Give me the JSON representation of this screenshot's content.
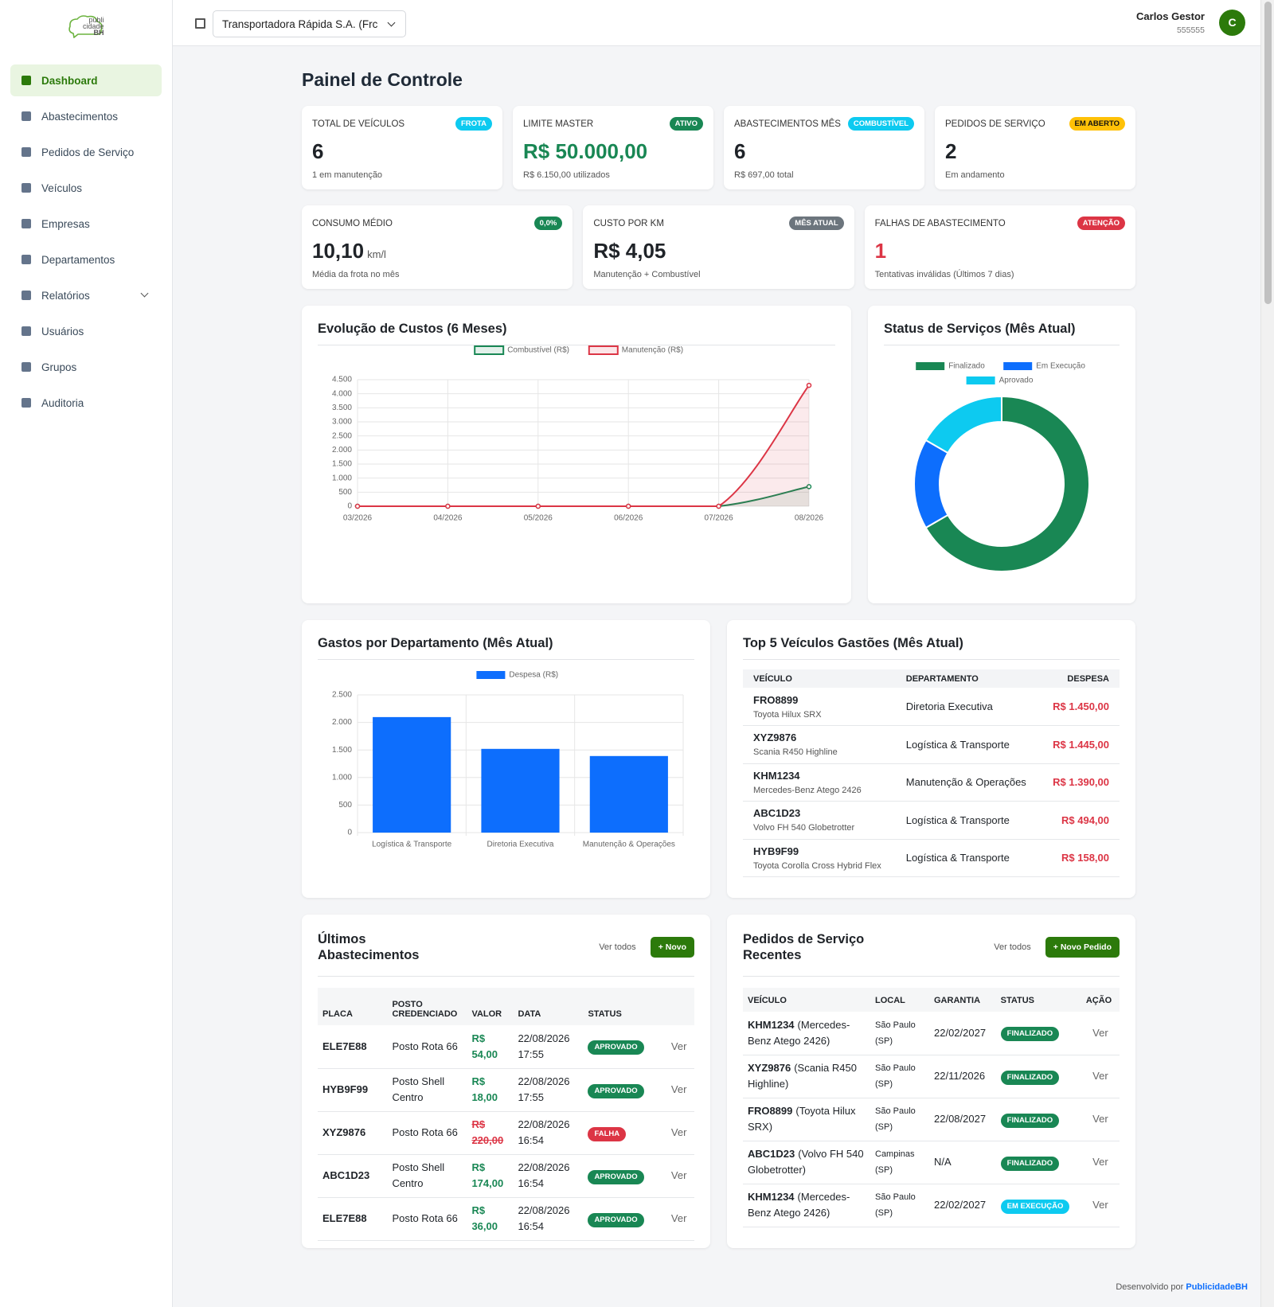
{
  "sidebar": {
    "logo": [
      "publi",
      "cidade",
      "BH"
    ],
    "menu": [
      "Dashboard",
      "Abastecimentos",
      "Pedidos de Serviço",
      "Veículos",
      "Empresas",
      "Departamentos",
      "Relatórios",
      "Usuários",
      "Grupos",
      "Auditoria"
    ],
    "active": 0,
    "expandable": 6
  },
  "header": {
    "company": "Transportadora Rápida S.A. (Frc",
    "user_name": "Carlos Gestor",
    "user_id": "555555",
    "avatar": "C"
  },
  "page_title": "Painel de Controle",
  "kpis": [
    {
      "label": "TOTAL DE VEÍCULOS",
      "badge": "FROTA",
      "badge_color": "#0dcaf0",
      "value": "6",
      "note": "1 em manutenção"
    },
    {
      "label": "LIMITE MASTER",
      "badge": "ATIVO",
      "badge_color": "#198754",
      "value": "R$ 50.000,00",
      "value_color": "#198754",
      "note": "R$ 6.150,00 utilizados"
    },
    {
      "label": "ABASTECIMENTOS MÊS",
      "badge": "COMBUSTÍVEL",
      "badge_color": "#0dcaf0",
      "value": "6",
      "note": "R$ 697,00 total"
    },
    {
      "label": "PEDIDOS DE SERVIÇO",
      "badge": "EM ABERTO",
      "badge_color": "#ffc107",
      "value": "2",
      "note": "Em andamento"
    },
    {
      "label": "CONSUMO MÉDIO",
      "badge": "0,0%",
      "badge_color": "#198754",
      "value": "10,10",
      "unit": "km/l",
      "note": "Média da frota no mês"
    },
    {
      "label": "CUSTO POR KM",
      "badge": "MÊS ATUAL",
      "badge_color": "#6c757d",
      "value": "R$ 4,05",
      "note": "Manutenção + Combustível"
    },
    {
      "label": "FALHAS DE ABASTECIMENTO",
      "badge": "ATENÇÃO",
      "badge_color": "#dc3545",
      "value": "1",
      "value_color": "#dc3545",
      "note": "Tentativas inválidas (Últimos 7 dias)"
    }
  ],
  "chart_data": [
    {
      "type": "line",
      "title": "Evolução de Custos (6 Meses)",
      "categories": [
        "03/2026",
        "04/2026",
        "05/2026",
        "06/2026",
        "07/2026",
        "08/2026"
      ],
      "series": [
        {
          "name": "Combustível (R$)",
          "color": "#198754",
          "values": [
            0,
            0,
            0,
            0,
            0,
            697
          ]
        },
        {
          "name": "Manutenção (R$)",
          "color": "#dc3545",
          "values": [
            0,
            0,
            0,
            0,
            0,
            4300
          ]
        }
      ],
      "ylim": [
        0,
        4500
      ],
      "yticks": [
        0,
        500,
        {
          "value": 1000,
          "label": "1.000"
        },
        {
          "value": 1500,
          "label": "1.500"
        },
        {
          "value": 2000,
          "label": "2.000"
        },
        {
          "value": 2500,
          "label": "2.500"
        },
        {
          "value": 3000,
          "label": "3.000"
        },
        {
          "value": 3500,
          "label": "3.500"
        },
        {
          "value": 4000,
          "label": "4.000"
        },
        {
          "value": 4500,
          "label": "4.500"
        }
      ],
      "grid": true,
      "legend": "top"
    },
    {
      "type": "doughnut",
      "title": "Status de Serviços (Mês Atual)",
      "categories": [
        "Finalizado",
        "Em Execução",
        "Aprovado"
      ],
      "values": [
        4,
        1,
        1
      ],
      "colors": [
        "#198754",
        "#0d6efd",
        "#0dcaf0"
      ],
      "legend": "top"
    },
    {
      "type": "bar",
      "title": "Gastos por Departamento (Mês Atual)",
      "categories": [
        "Logística & Transporte",
        "Diretoria Executiva",
        "Manutenção & Operações"
      ],
      "series": [
        {
          "name": "Despesa (R$)",
          "color": "#0d6efd",
          "values": [
            2097,
            1520,
            1390
          ]
        }
      ],
      "ylim": [
        0,
        2500
      ],
      "yticks": [
        0,
        500,
        {
          "value": 1000,
          "label": "1.000"
        },
        {
          "value": 1500,
          "label": "1.500"
        },
        {
          "value": 2000,
          "label": "2.000"
        },
        {
          "value": 2500,
          "label": "2.500"
        }
      ],
      "grid": true,
      "legend": "top"
    }
  ],
  "top_vehicles": {
    "title": "Top 5 Veículos Gastões (Mês Atual)",
    "columns": [
      "VEÍCULO",
      "DEPARTAMENTO",
      "DESPESA"
    ],
    "rows": [
      {
        "plate": "FRO8899",
        "model": "Toyota Hilux SRX",
        "department": "Diretoria Executiva",
        "expense": "R$ 1.450,00"
      },
      {
        "plate": "XYZ9876",
        "model": "Scania R450 Highline",
        "department": "Logística & Transporte",
        "expense": "R$ 1.445,00"
      },
      {
        "plate": "KHM1234",
        "model": "Mercedes-Benz Atego 2426",
        "department": "Manutenção & Operações",
        "expense": "R$ 1.390,00"
      },
      {
        "plate": "ABC1D23",
        "model": "Volvo FH 540 Globetrotter",
        "department": "Logística & Transporte",
        "expense": "R$ 494,00"
      },
      {
        "plate": "HYB9F99",
        "model": "Toyota Corolla Cross Hybrid Flex",
        "department": "Logística & Transporte",
        "expense": "R$ 158,00"
      }
    ]
  },
  "fuelings": {
    "title": "Últimos Abastecimentos",
    "see_all": "Ver todos",
    "new_button": "+ Novo",
    "columns": [
      "PLACA",
      "POSTO CREDENCIADO",
      "VALOR",
      "DATA",
      "STATUS"
    ],
    "rows": [
      {
        "plate": "ELE7E88",
        "station": "Posto Rota 66",
        "value": "R$ 54,00",
        "date": "22/08/2026 17:55",
        "status": "APROVADO",
        "status_color": "#198754",
        "strikethrough": false,
        "action": "Ver"
      },
      {
        "plate": "HYB9F99",
        "station": "Posto Shell Centro",
        "value": "R$ 18,00",
        "date": "22/08/2026 17:55",
        "status": "APROVADO",
        "status_color": "#198754",
        "strikethrough": false,
        "action": "Ver"
      },
      {
        "plate": "XYZ9876",
        "station": "Posto Rota 66",
        "value": "R$ 220,00",
        "date": "22/08/2026 16:54",
        "status": "FALHA",
        "status_color": "#dc3545",
        "strikethrough": true,
        "action": "Ver"
      },
      {
        "plate": "ABC1D23",
        "station": "Posto Shell Centro",
        "value": "R$ 174,00",
        "date": "22/08/2026 16:54",
        "status": "APROVADO",
        "status_color": "#198754",
        "strikethrough": false,
        "action": "Ver"
      },
      {
        "plate": "ELE7E88",
        "station": "Posto Rota 66",
        "value": "R$ 36,00",
        "date": "22/08/2026 16:54",
        "status": "APROVADO",
        "status_color": "#198754",
        "strikethrough": false,
        "action": "Ver"
      }
    ]
  },
  "service_orders": {
    "title": "Pedidos de Serviço Recentes",
    "see_all": "Ver todos",
    "new_button": "+ Novo Pedido",
    "columns": [
      "VEÍCULO",
      "LOCAL",
      "GARANTIA",
      "STATUS",
      "AÇÃO"
    ],
    "rows": [
      {
        "plate": "KHM1234",
        "model": "(Mercedes-Benz Atego 2426)",
        "location": "São Paulo (SP)",
        "warranty": "22/02/2027",
        "status": "FINALIZADO",
        "status_color": "#198754",
        "action": "Ver"
      },
      {
        "plate": "XYZ9876",
        "model": "(Scania R450 Highline)",
        "location": "São Paulo (SP)",
        "warranty": "22/11/2026",
        "status": "FINALIZADO",
        "status_color": "#198754",
        "action": "Ver"
      },
      {
        "plate": "FRO8899",
        "model": "(Toyota Hilux SRX)",
        "location": "São Paulo (SP)",
        "warranty": "22/08/2027",
        "status": "FINALIZADO",
        "status_color": "#198754",
        "action": "Ver"
      },
      {
        "plate": "ABC1D23",
        "model": "(Volvo FH 540 Globetrotter)",
        "location": "Campinas (SP)",
        "warranty": "N/A",
        "status": "FINALIZADO",
        "status_color": "#198754",
        "action": "Ver"
      },
      {
        "plate": "KHM1234",
        "model": "(Mercedes-Benz Atego 2426)",
        "location": "São Paulo (SP)",
        "warranty": "22/02/2027",
        "status": "EM EXECUÇÃO",
        "status_color": "#0dcaf0",
        "action": "Ver"
      }
    ]
  },
  "footer": {
    "text": "Desenvolvido por",
    "brand": "PublicidadeBH"
  }
}
